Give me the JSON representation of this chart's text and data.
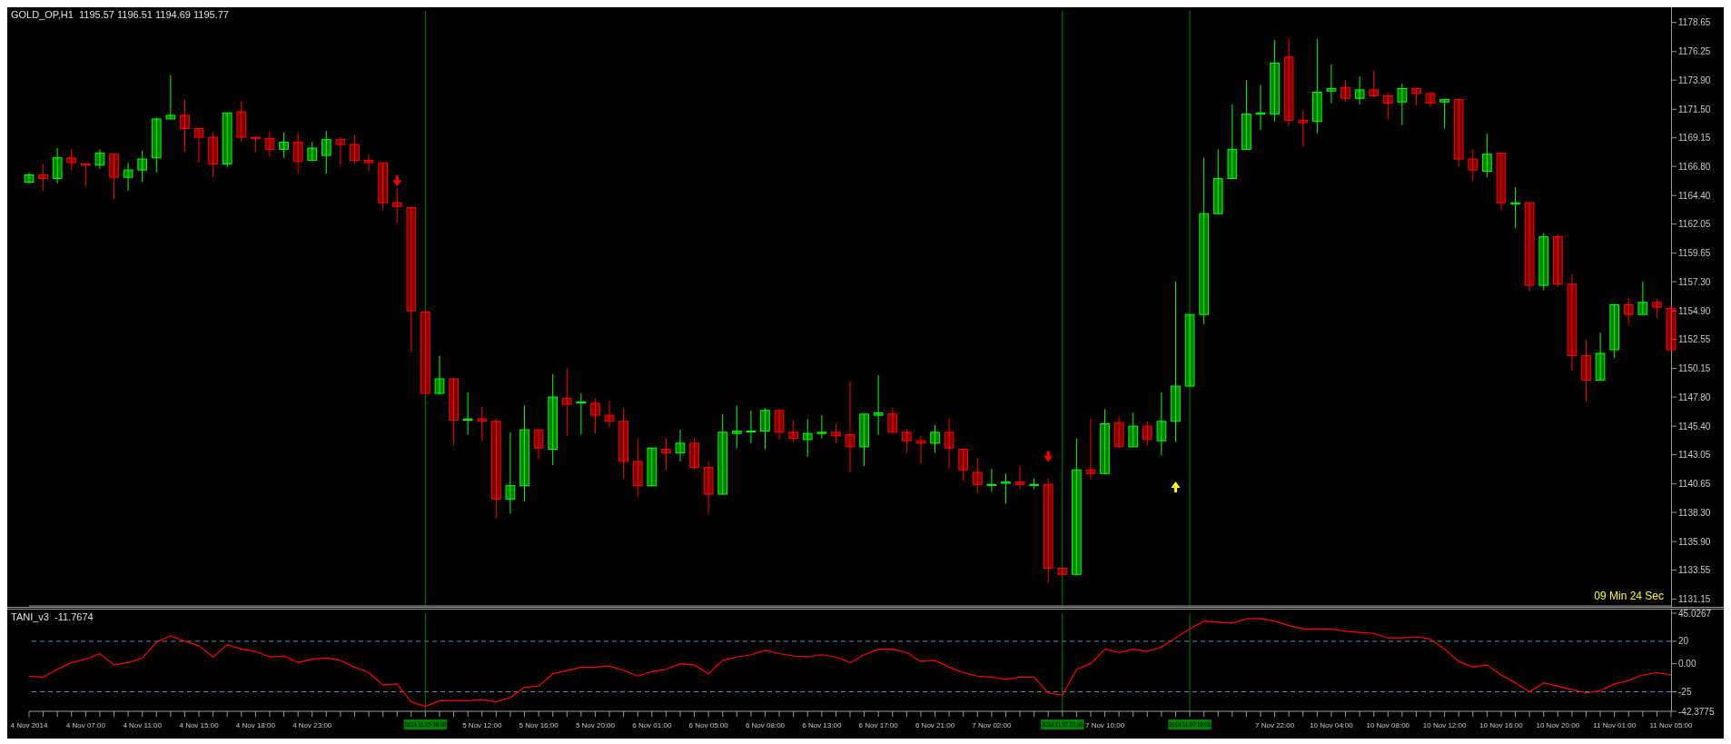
{
  "chart_data": [
    {
      "type": "candlestick",
      "title": "GOLD_OP,H1  1195.57 1196.51 1194.69 1195.77",
      "annotations": [
        "09 Min 24 Sec"
      ],
      "tick_labels": "y",
      "colors": [
        "#00ff00",
        "#ff0000",
        "#00ff00",
        "#ff0000",
        "#ff0000",
        "#00ff00",
        "#ff0000",
        "#00ff00",
        "#00ff00",
        "#00ff00",
        "#00ff00",
        "#ff0000",
        "#ff0000",
        "#ff0000",
        "#00ff00",
        "#ff0000",
        "#ff0000",
        "#ff0000",
        "#00ff00",
        "#ff0000",
        "#00ff00",
        "#00ff00",
        "#ff0000",
        "#ff0000",
        "#ff0000",
        "#ff0000",
        "#ff0000",
        "#ff0000",
        "#ff0000",
        "#00ff00",
        "#ff0000",
        "#00ff00",
        "#ff0000",
        "#ff0000",
        "#00ff00",
        "#00ff00",
        "#ff0000",
        "#00ff00",
        "#ff0000",
        "#00ff00",
        "#ff0000",
        "#ff0000",
        "#ff0000",
        "#ff0000",
        "#00ff00",
        "#ff0000",
        "#00ff00",
        "#ff0000",
        "#ff0000",
        "#00ff00",
        "#00ff00",
        "#00ff00",
        "#00ff00",
        "#ff0000",
        "#ff0000",
        "#00ff00",
        "#00ff00",
        "#ff0000",
        "#ff0000",
        "#00ff00",
        "#00ff00",
        "#ff0000",
        "#ff0000",
        "#ff0000",
        "#00ff00",
        "#ff0000",
        "#ff0000",
        "#ff0000",
        "#00ff00",
        "#00ff00",
        "#ff0000",
        "#00ff00",
        "#ff0000",
        "#ff0000",
        "#00ff00",
        "#ff0000",
        "#00ff00",
        "#ff0000",
        "#00ff00",
        "#ff0000",
        "#00ff00",
        "#00ff00",
        "#00ff00",
        "#00ff00",
        "#00ff00",
        "#00ff00",
        "#00ff00",
        "#00ff00",
        "#00ff00",
        "#ff0000",
        "#ff0000",
        "#00ff00",
        "#00ff00",
        "#ff0000",
        "#00ff00",
        "#ff0000",
        "#ff0000",
        "#00ff00",
        "#ff0000",
        "#ff0000",
        "#00ff00",
        "#ff0000",
        "#ff0000",
        "#00ff00",
        "#ff0000",
        "#00ff00",
        "#ff0000",
        "#00ff00",
        "#ff0000",
        "#ff0000",
        "#ff0000",
        "#00ff00",
        "#00ff00",
        "#ff0000",
        "#00ff00",
        "#ff0000",
        "#ff0000"
      ],
      "categories": [
        "4 Nov 2014",
        null,
        null,
        null,
        "4 Nov 07:00",
        null,
        null,
        null,
        "4 Nov 11:00",
        null,
        null,
        null,
        "4 Nov 15:00",
        null,
        null,
        null,
        "4 Nov 18:00",
        null,
        null,
        null,
        "4 Nov 23:00",
        null,
        null,
        null,
        null,
        null,
        null,
        null,
        "2014.11.05 08:00",
        null,
        null,
        null,
        "5 Nov 12:00",
        null,
        null,
        null,
        "5 Nov 16:00",
        null,
        null,
        null,
        "5 Nov 20:00",
        null,
        null,
        null,
        "6 Nov 01:00",
        null,
        null,
        null,
        "6 Nov 05:00",
        null,
        null,
        null,
        "6 Nov 08:00",
        null,
        null,
        null,
        "6 Nov 13:00",
        null,
        null,
        null,
        "6 Nov 17:00",
        null,
        null,
        null,
        "6 Nov 21:00",
        null,
        null,
        null,
        "7 Nov 02:00",
        null,
        null,
        null,
        null,
        "2014.11.07 07:00",
        null,
        null,
        "7 Nov 10:00",
        null,
        null,
        null,
        null,
        null,
        "2014.11.07 16:00",
        null,
        null,
        null,
        null,
        null,
        "7 Nov 22:00",
        null,
        null,
        null,
        "10 Nov 04:00",
        null,
        null,
        null,
        "10 Nov 08:00",
        null,
        null,
        null,
        "10 Nov 12:00",
        null,
        null,
        null,
        "10 Nov 16:00",
        null,
        null,
        null,
        "10 Nov 20:00",
        null,
        null,
        null,
        "11 Nov 01:00",
        null,
        null,
        null,
        "11 Nov 05:00"
      ],
      "ohlc": [
        [
          1165.5,
          1166.3,
          1165.4,
          1166.1
        ],
        [
          1166.1,
          1167.0,
          1164.8,
          1165.8
        ],
        [
          1165.8,
          1168.3,
          1165.4,
          1167.5
        ],
        [
          1167.5,
          1168.2,
          1166.5,
          1167.1
        ],
        [
          1167.0,
          1167.0,
          1165.1,
          1166.9
        ],
        [
          1166.9,
          1168.2,
          1166.6,
          1167.9
        ],
        [
          1167.8,
          1167.8,
          1164.1,
          1165.9
        ],
        [
          1165.9,
          1167.1,
          1164.8,
          1166.5
        ],
        [
          1166.5,
          1168.1,
          1165.5,
          1167.4
        ],
        [
          1167.5,
          1170.8,
          1166.3,
          1170.7
        ],
        [
          1170.7,
          1174.3,
          1170.7,
          1171.0
        ],
        [
          1171.0,
          1172.3,
          1168.0,
          1169.9
        ],
        [
          1169.9,
          1170.0,
          1167.1,
          1169.2
        ],
        [
          1169.2,
          1169.6,
          1165.9,
          1167.0
        ],
        [
          1167.0,
          1171.2,
          1166.7,
          1171.2
        ],
        [
          1171.3,
          1172.2,
          1168.8,
          1169.2
        ],
        [
          1169.2,
          1169.2,
          1168.0,
          1169.1
        ],
        [
          1169.1,
          1169.7,
          1167.6,
          1168.2
        ],
        [
          1168.2,
          1169.6,
          1167.5,
          1168.8
        ],
        [
          1168.8,
          1169.6,
          1166.2,
          1167.2
        ],
        [
          1167.3,
          1168.8,
          1167.3,
          1168.3
        ],
        [
          1167.7,
          1169.7,
          1166.2,
          1169.0
        ],
        [
          1169.0,
          1169.2,
          1166.9,
          1168.6
        ],
        [
          1168.6,
          1169.4,
          1167.0,
          1167.3
        ],
        [
          1167.3,
          1167.8,
          1166.4,
          1167.1
        ],
        [
          1167.1,
          1167.1,
          1163.2,
          1163.8
        ],
        [
          1163.8,
          1165.0,
          1162.1,
          1163.5
        ],
        [
          1163.4,
          1163.4,
          1151.5,
          1154.9
        ],
        [
          1154.8,
          1154.8,
          1148.1,
          1148.1
        ],
        [
          1148.1,
          1151.2,
          1148.0,
          1149.3
        ],
        [
          1149.3,
          1149.4,
          1143.8,
          1145.9
        ],
        [
          1145.9,
          1148.2,
          1144.7,
          1146.0
        ],
        [
          1146.0,
          1147.0,
          1144.2,
          1145.8
        ],
        [
          1145.8,
          1146.0,
          1137.8,
          1139.4
        ],
        [
          1139.4,
          1144.9,
          1138.2,
          1140.5
        ],
        [
          1140.5,
          1147.1,
          1139.2,
          1145.1
        ],
        [
          1145.1,
          1145.1,
          1142.7,
          1143.6
        ],
        [
          1143.5,
          1149.7,
          1142.2,
          1147.8
        ],
        [
          1147.7,
          1150.2,
          1144.6,
          1147.2
        ],
        [
          1147.3,
          1148.1,
          1144.7,
          1147.4
        ],
        [
          1147.3,
          1147.7,
          1144.8,
          1146.3
        ],
        [
          1146.3,
          1147.5,
          1145.3,
          1145.8
        ],
        [
          1145.8,
          1146.9,
          1141.1,
          1142.5
        ],
        [
          1142.5,
          1144.4,
          1139.6,
          1140.5
        ],
        [
          1140.5,
          1143.6,
          1140.5,
          1143.6
        ],
        [
          1143.5,
          1144.4,
          1141.8,
          1143.2
        ],
        [
          1143.2,
          1145.1,
          1142.5,
          1144.0
        ],
        [
          1144.0,
          1144.4,
          1141.8,
          1142.0
        ],
        [
          1142.0,
          1142.5,
          1138.2,
          1139.8
        ],
        [
          1139.8,
          1146.4,
          1139.8,
          1144.9
        ],
        [
          1144.8,
          1147.1,
          1143.6,
          1145.0
        ],
        [
          1145.0,
          1146.7,
          1144.0,
          1145.0
        ],
        [
          1145.0,
          1146.9,
          1143.5,
          1146.7
        ],
        [
          1146.7,
          1146.8,
          1144.3,
          1144.9
        ],
        [
          1144.9,
          1145.9,
          1144.1,
          1144.4
        ],
        [
          1144.3,
          1146.0,
          1142.9,
          1144.8
        ],
        [
          1144.8,
          1146.3,
          1144.4,
          1144.9
        ],
        [
          1144.9,
          1145.6,
          1144.0,
          1144.6
        ],
        [
          1144.7,
          1149.1,
          1141.6,
          1143.7
        ],
        [
          1143.7,
          1146.4,
          1142.1,
          1146.4
        ],
        [
          1146.3,
          1149.6,
          1144.7,
          1146.5
        ],
        [
          1146.4,
          1146.9,
          1144.9,
          1144.9
        ],
        [
          1144.9,
          1145.2,
          1143.2,
          1144.2
        ],
        [
          1144.2,
          1144.6,
          1142.3,
          1144.0
        ],
        [
          1144.0,
          1145.5,
          1143.2,
          1144.9
        ],
        [
          1144.9,
          1146.1,
          1141.9,
          1143.6
        ],
        [
          1143.5,
          1143.6,
          1140.9,
          1141.8
        ],
        [
          1141.6,
          1142.8,
          1139.9,
          1140.6
        ],
        [
          1140.6,
          1141.9,
          1140.0,
          1140.6
        ],
        [
          1140.7,
          1141.5,
          1139.0,
          1140.8
        ],
        [
          1140.8,
          1142.1,
          1140.2,
          1140.6
        ],
        [
          1140.6,
          1141.1,
          1140.2,
          1140.6
        ],
        [
          1140.6,
          1141.1,
          1132.5,
          1133.7
        ],
        [
          1133.7,
          1133.7,
          1133.2,
          1133.2
        ],
        [
          1133.2,
          1144.4,
          1133.1,
          1141.8
        ],
        [
          1141.8,
          1146.0,
          1141.0,
          1141.5
        ],
        [
          1141.5,
          1146.8,
          1141.5,
          1145.6
        ],
        [
          1145.7,
          1146.2,
          1143.6,
          1143.7
        ],
        [
          1143.7,
          1146.5,
          1143.7,
          1145.4
        ],
        [
          1145.4,
          1145.8,
          1143.8,
          1144.3
        ],
        [
          1144.2,
          1148.2,
          1143.0,
          1145.8
        ],
        [
          1145.8,
          1157.3,
          1144.1,
          1148.7
        ],
        [
          1148.7,
          1154.6,
          1148.7,
          1154.6
        ],
        [
          1154.6,
          1167.5,
          1153.8,
          1162.9
        ],
        [
          1162.9,
          1168.2,
          1162.9,
          1165.8
        ],
        [
          1165.8,
          1171.9,
          1165.8,
          1168.2
        ],
        [
          1168.2,
          1173.9,
          1168.2,
          1171.1
        ],
        [
          1171.1,
          1173.5,
          1169.8,
          1171.2
        ],
        [
          1171.1,
          1177.2,
          1170.5,
          1175.3
        ],
        [
          1175.8,
          1177.3,
          1170.1,
          1170.6
        ],
        [
          1170.6,
          1171.4,
          1168.4,
          1170.4
        ],
        [
          1170.5,
          1177.3,
          1169.5,
          1172.9
        ],
        [
          1173.0,
          1175.2,
          1172.0,
          1173.2
        ],
        [
          1173.3,
          1173.9,
          1172.1,
          1172.4
        ],
        [
          1172.4,
          1174.2,
          1171.9,
          1173.1
        ],
        [
          1173.1,
          1174.7,
          1172.5,
          1172.6
        ],
        [
          1172.6,
          1172.9,
          1170.6,
          1172.0
        ],
        [
          1172.1,
          1173.6,
          1170.2,
          1173.2
        ],
        [
          1173.2,
          1173.3,
          1171.8,
          1172.8
        ],
        [
          1172.8,
          1172.9,
          1171.7,
          1172.0
        ],
        [
          1172.1,
          1172.3,
          1169.9,
          1172.3
        ],
        [
          1172.3,
          1172.3,
          1166.8,
          1167.4
        ],
        [
          1167.4,
          1168.2,
          1165.6,
          1166.5
        ],
        [
          1166.4,
          1169.5,
          1165.9,
          1167.8
        ],
        [
          1167.9,
          1167.9,
          1163.2,
          1163.8
        ],
        [
          1163.7,
          1165.1,
          1161.7,
          1163.8
        ],
        [
          1163.8,
          1163.8,
          1156.5,
          1157.0
        ],
        [
          1157.0,
          1161.3,
          1156.6,
          1161.0
        ],
        [
          1161.0,
          1161.2,
          1156.9,
          1157.1
        ],
        [
          1157.1,
          1157.9,
          1150.0,
          1151.2
        ],
        [
          1151.2,
          1152.5,
          1147.4,
          1149.2
        ],
        [
          1149.2,
          1153.1,
          1149.2,
          1151.4
        ],
        [
          1151.7,
          1155.4,
          1151.0,
          1155.4
        ],
        [
          1155.4,
          1156.0,
          1153.8,
          1154.6
        ],
        [
          1154.6,
          1157.3,
          1154.6,
          1155.6
        ],
        [
          1155.6,
          1155.9,
          1154.3,
          1155.2
        ],
        [
          1155.1,
          1155.4,
          1151.7,
          1151.7
        ]
      ],
      "series": [
        {
          "type": "scatter",
          "color": "#ff0000",
          "values": [
            null,
            null,
            null,
            null,
            null,
            null,
            null,
            null,
            null,
            null,
            null,
            null,
            null,
            null,
            null,
            null,
            null,
            null,
            null,
            null,
            null,
            null,
            null,
            null,
            null,
            null,
            1165.6,
            null,
            null,
            null,
            null,
            null,
            null,
            null,
            null,
            null,
            null,
            null,
            null,
            null,
            null,
            null,
            null,
            null,
            null,
            null,
            null,
            null,
            null,
            null,
            null,
            null,
            null,
            null,
            null,
            null,
            null,
            null,
            null,
            null,
            null,
            null,
            null,
            null,
            null,
            null,
            null,
            null,
            null,
            null,
            null,
            null,
            1142.9,
            null,
            null,
            null,
            null,
            null,
            null,
            null,
            null,
            null,
            null,
            null,
            null,
            null,
            null,
            null,
            null,
            null,
            null,
            null,
            null,
            null,
            null,
            null,
            null,
            null,
            null,
            null,
            null,
            null,
            null,
            null,
            null,
            null,
            null,
            null,
            null,
            null,
            null,
            null,
            null,
            null,
            null,
            null,
            null
          ]
        },
        {
          "type": "scatter",
          "color": "#ffff00",
          "values": [
            null,
            null,
            null,
            null,
            null,
            null,
            null,
            null,
            null,
            null,
            null,
            null,
            null,
            null,
            null,
            null,
            null,
            null,
            null,
            null,
            null,
            null,
            null,
            null,
            null,
            null,
            null,
            null,
            null,
            null,
            null,
            null,
            null,
            null,
            null,
            null,
            null,
            null,
            null,
            null,
            null,
            null,
            null,
            null,
            null,
            null,
            null,
            null,
            null,
            null,
            null,
            null,
            null,
            null,
            null,
            null,
            null,
            null,
            null,
            null,
            null,
            null,
            null,
            null,
            null,
            null,
            null,
            null,
            null,
            null,
            null,
            null,
            null,
            null,
            null,
            null,
            null,
            null,
            null,
            null,
            null,
            1140.4,
            null,
            null,
            null,
            null,
            null,
            null,
            null,
            null,
            null,
            null,
            null,
            null,
            null,
            null,
            null,
            null,
            null,
            null,
            null,
            null,
            null,
            null,
            null,
            null,
            null,
            null,
            null,
            null,
            null,
            null,
            null,
            null,
            null,
            null,
            null
          ]
        }
      ],
      "ylim": [
        1130.6,
        1179.6
      ],
      "yticks": [
        1131.15,
        1133.55,
        {
          "value": 1135.9,
          "label": "1135.90"
        },
        {
          "value": 1138.3,
          "label": "1138.30"
        },
        1140.65,
        1143.05,
        {
          "value": 1145.4,
          "label": "1145.40"
        },
        {
          "value": 1147.8,
          "label": "1147.80"
        },
        1150.15,
        1152.55,
        {
          "value": 1154.9,
          "label": "1154.90"
        },
        {
          "value": 1157.3,
          "label": "1157.30"
        },
        1159.65,
        1162.05,
        {
          "value": 1164.4,
          "label": "1164.40"
        },
        {
          "value": 1166.8,
          "label": "1166.80"
        },
        1169.15,
        {
          "value": 1171.5,
          "label": "1171.50"
        },
        {
          "value": 1173.9,
          "label": "1173.90"
        },
        1176.25,
        1178.65
      ],
      "ref_lines": [
        {
          "axis": "x",
          "value": "2014.11.05 08:00",
          "color": "#008000"
        },
        {
          "axis": "x",
          "value": "2014.11.07 07:00",
          "color": "#008000"
        },
        {
          "axis": "x",
          "value": "2014.11.07 16:00",
          "color": "#008000"
        }
      ]
    },
    {
      "type": "line",
      "title": "TANI_v3  -11.7674",
      "categories": [
        "4 Nov 2014",
        null,
        null,
        null,
        "4 Nov 07:00",
        null,
        null,
        null,
        "4 Nov 11:00",
        null,
        null,
        null,
        "4 Nov 15:00",
        null,
        null,
        null,
        "4 Nov 18:00",
        null,
        null,
        null,
        "4 Nov 23:00",
        null,
        null,
        null,
        null,
        null,
        null,
        null,
        "2014.11.05 08:00",
        null,
        null,
        null,
        "5 Nov 12:00",
        null,
        null,
        null,
        "5 Nov 16:00",
        null,
        null,
        null,
        "5 Nov 20:00",
        null,
        null,
        null,
        "6 Nov 01:00",
        null,
        null,
        null,
        "6 Nov 05:00",
        null,
        null,
        null,
        "6 Nov 08:00",
        null,
        null,
        null,
        "6 Nov 13:00",
        null,
        null,
        null,
        "6 Nov 17:00",
        null,
        null,
        null,
        "6 Nov 21:00",
        null,
        null,
        null,
        "7 Nov 02:00",
        null,
        null,
        null,
        null,
        "2014.11.07 07:00",
        null,
        null,
        "7 Nov 10:00",
        null,
        null,
        null,
        null,
        null,
        "2014.11.07 16:00",
        null,
        null,
        null,
        null,
        null,
        "7 Nov 22:00",
        null,
        null,
        null,
        "10 Nov 04:00",
        null,
        null,
        null,
        "10 Nov 08:00",
        null,
        null,
        null,
        "10 Nov 12:00",
        null,
        null,
        null,
        "10 Nov 16:00",
        null,
        null,
        null,
        "10 Nov 20:00",
        null,
        null,
        null,
        "11 Nov 01:00",
        null,
        null,
        null,
        "11 Nov 05:00"
      ],
      "series": [
        {
          "color": "#ff0000",
          "values": [
            -11,
            -12,
            -5,
            1,
            4,
            9,
            -1,
            1,
            5,
            19,
            25,
            20,
            16,
            6,
            17,
            13,
            11,
            6,
            7,
            1,
            4,
            5,
            3,
            -3,
            -8,
            -19,
            -18,
            -34,
            -38,
            -33,
            -33,
            -33,
            -32,
            -34,
            -30,
            -21,
            -20,
            -9,
            -6,
            -3,
            -3,
            -2,
            -6,
            -11,
            -7,
            -5,
            0,
            -1,
            -9,
            3,
            6,
            8,
            12,
            9,
            7,
            6,
            8,
            6,
            1,
            8,
            13,
            13,
            10,
            2,
            3,
            -3,
            -8,
            -11,
            -12,
            -14,
            -12,
            -12,
            -26,
            -28,
            -5,
            0,
            13,
            10,
            13,
            11,
            15,
            23,
            31,
            38,
            37,
            36,
            40,
            40,
            38,
            34,
            31,
            31,
            31,
            29,
            28,
            27,
            23,
            23,
            24,
            22,
            13,
            2,
            -3,
            -1,
            -10,
            -17,
            -25,
            -17,
            -20,
            -23,
            -26,
            -24,
            -18,
            -15,
            -10,
            -8,
            -10
          ]
        }
      ],
      "ylim": [
        -42.3775,
        45.0267
      ],
      "yticks": [
        45.0267,
        20,
        {
          "value": 0,
          "label": "0.00"
        },
        -25,
        -42.3775
      ],
      "ref_lines": [
        {
          "axis": "y",
          "value": 20,
          "color": "#4f8fc0",
          "line_style": "dashed"
        },
        {
          "axis": "y",
          "value": -25,
          "color": "#4f8fc0",
          "line_style": "dashed"
        },
        {
          "axis": "x",
          "value": "2014.11.05 08:00",
          "color": "#008000"
        },
        {
          "axis": "x",
          "value": "2014.11.07 07:00",
          "color": "#008000"
        },
        {
          "axis": "x",
          "value": "2014.11.07 16:00",
          "color": "#008000"
        }
      ]
    }
  ]
}
